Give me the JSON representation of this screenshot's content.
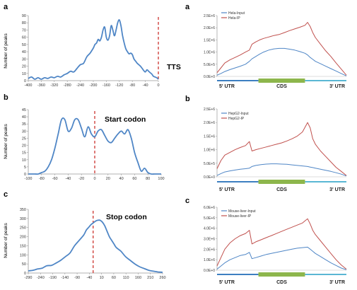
{
  "colors": {
    "blue": "#4f86c6",
    "red": "#c0504d",
    "dash": "#d0433e",
    "gene_green": "#8db64c",
    "gene_blue": "#3d7fc1",
    "gene_cyan": "#5ab7d4"
  },
  "chart_data": [
    {
      "id": "left-a",
      "panel": "a",
      "type": "line",
      "ylabel": "Number of peaks",
      "annotation": "TTS",
      "xlim": [
        -400,
        0
      ],
      "ylim": [
        0,
        90
      ],
      "yticks": [
        "0",
        "10",
        "20",
        "30",
        "40",
        "50",
        "60",
        "70",
        "80",
        "90"
      ],
      "xticks": [
        "-400",
        "-360",
        "-320",
        "-280",
        "-240",
        "-200",
        "-160",
        "-120",
        "-80",
        "-40",
        "0"
      ],
      "marker_x": 0,
      "series": [
        {
          "color": "#4f86c6",
          "x": [
            -400,
            -390,
            -380,
            -370,
            -360,
            -350,
            -340,
            -330,
            -320,
            -310,
            -300,
            -290,
            -280,
            -270,
            -260,
            -250,
            -240,
            -230,
            -220,
            -210,
            -200,
            -195,
            -190,
            -185,
            -180,
            -175,
            -170,
            -165,
            -160,
            -155,
            -150,
            -145,
            -140,
            -135,
            -130,
            -125,
            -120,
            -115,
            -110,
            -105,
            -100,
            -95,
            -90,
            -85,
            -80,
            -75,
            -70,
            -65,
            -60,
            -55,
            -50,
            -45,
            -40,
            -35,
            -30,
            -25,
            -20,
            -15,
            -10,
            -5,
            0
          ],
          "y": [
            3,
            5,
            2,
            4,
            2,
            4,
            3,
            5,
            4,
            6,
            5,
            8,
            10,
            13,
            12,
            17,
            22,
            24,
            33,
            38,
            45,
            50,
            52,
            57,
            55,
            60,
            70,
            74,
            60,
            56,
            62,
            76,
            70,
            62,
            70,
            80,
            84,
            76,
            62,
            52,
            44,
            40,
            37,
            38,
            36,
            30,
            27,
            24,
            22,
            20,
            17,
            14,
            12,
            15,
            13,
            11,
            9,
            6,
            5,
            4,
            2
          ]
        }
      ]
    },
    {
      "id": "left-b",
      "panel": "b",
      "type": "line",
      "ylabel": "Number of peaks",
      "annotation": "Start codon",
      "xlim": [
        -100,
        100
      ],
      "ylim": [
        0,
        45
      ],
      "yticks": [
        "0",
        "5",
        "10",
        "15",
        "20",
        "25",
        "30",
        "35",
        "40",
        "45"
      ],
      "xticks": [
        "-100",
        "-80",
        "-60",
        "-40",
        "-20",
        "0",
        "20",
        "40",
        "60",
        "80",
        "100"
      ],
      "marker_x": 0,
      "series": [
        {
          "color": "#4f86c6",
          "x": [
            -100,
            -95,
            -90,
            -85,
            -80,
            -75,
            -70,
            -65,
            -60,
            -55,
            -50,
            -45,
            -40,
            -35,
            -30,
            -25,
            -20,
            -15,
            -10,
            -5,
            0,
            5,
            10,
            15,
            20,
            25,
            30,
            35,
            40,
            45,
            50,
            55,
            60,
            65,
            70,
            75,
            80,
            85,
            90,
            95,
            100
          ],
          "y": [
            0,
            0,
            0,
            0,
            1,
            2,
            5,
            10,
            18,
            28,
            38,
            38,
            30,
            32,
            38,
            38,
            32,
            26,
            33,
            28,
            26,
            30,
            31,
            27,
            23,
            22,
            25,
            28,
            30,
            28,
            31,
            25,
            15,
            8,
            2,
            4,
            1,
            0,
            0,
            0,
            0
          ]
        }
      ]
    },
    {
      "id": "left-c",
      "panel": "c",
      "type": "line",
      "ylabel": "Number of peaks",
      "annotation": "Stop codon",
      "xlim": [
        -290,
        290
      ],
      "ylim": [
        0,
        350
      ],
      "yticks": [
        "0",
        "50",
        "100",
        "150",
        "200",
        "250",
        "300",
        "350"
      ],
      "xticks": [
        "-290",
        "-240",
        "-190",
        "-140",
        "-90",
        "-40",
        "10",
        "60",
        "110",
        "160",
        "210",
        "260"
      ],
      "marker_x": -10,
      "series": [
        {
          "color": "#4f86c6",
          "x": [
            -290,
            -270,
            -250,
            -230,
            -210,
            -190,
            -170,
            -150,
            -130,
            -110,
            -90,
            -70,
            -50,
            -40,
            -30,
            -20,
            -10,
            0,
            10,
            20,
            30,
            40,
            50,
            60,
            70,
            80,
            90,
            110,
            130,
            150,
            170,
            190,
            210,
            230,
            250,
            270,
            290
          ],
          "y": [
            12,
            15,
            22,
            27,
            40,
            42,
            55,
            70,
            90,
            110,
            150,
            180,
            210,
            235,
            250,
            265,
            275,
            285,
            290,
            290,
            280,
            260,
            230,
            200,
            180,
            160,
            140,
            120,
            90,
            70,
            50,
            35,
            25,
            15,
            10,
            6,
            4
          ]
        }
      ]
    },
    {
      "id": "right-a",
      "panel": "a",
      "type": "line",
      "ylim": [
        0,
        2500000
      ],
      "yticks": [
        "0.0E+0",
        "5.0E+5",
        "1.0E+6",
        "1.5E+6",
        "2.0E+6",
        "2.5E+6"
      ],
      "regions": [
        "5' UTR",
        "CDS",
        "3' UTR"
      ],
      "x": [
        0,
        0.03,
        0.06,
        0.1,
        0.14,
        0.18,
        0.22,
        0.25,
        0.27,
        0.3,
        0.33,
        0.36,
        0.4,
        0.44,
        0.48,
        0.52,
        0.56,
        0.6,
        0.64,
        0.68,
        0.7,
        0.72,
        0.74,
        0.76,
        0.8,
        0.84,
        0.88,
        0.92,
        0.96,
        1
      ],
      "series": [
        {
          "name": "Hela-Input",
          "color": "#4f86c6",
          "y": [
            0.05,
            0.12,
            0.2,
            0.28,
            0.35,
            0.42,
            0.5,
            0.62,
            0.72,
            0.82,
            0.92,
            1.0,
            1.08,
            1.13,
            1.15,
            1.15,
            1.12,
            1.08,
            1.02,
            0.95,
            0.88,
            0.78,
            0.7,
            0.62,
            0.52,
            0.42,
            0.32,
            0.22,
            0.12,
            0.02
          ]
        },
        {
          "name": "Hela-IP",
          "color": "#c0504d",
          "y": [
            0.15,
            0.35,
            0.55,
            0.68,
            0.78,
            0.88,
            1.0,
            1.08,
            1.32,
            1.42,
            1.5,
            1.56,
            1.62,
            1.68,
            1.72,
            1.8,
            1.88,
            1.95,
            2.02,
            2.1,
            2.22,
            2.05,
            1.8,
            1.6,
            1.32,
            1.05,
            0.82,
            0.55,
            0.3,
            0.05
          ]
        }
      ]
    },
    {
      "id": "right-b",
      "panel": "b",
      "type": "line",
      "ylim": [
        0,
        2500000
      ],
      "yticks": [
        "0.0E+0",
        "5.0E+5",
        "1.0E+6",
        "1.5E+6",
        "2.0E+6",
        "2.5E+6"
      ],
      "regions": [
        "5' UTR",
        "CDS",
        "3' UTR"
      ],
      "x": [
        0,
        0.03,
        0.06,
        0.1,
        0.14,
        0.18,
        0.22,
        0.25,
        0.27,
        0.3,
        0.34,
        0.38,
        0.42,
        0.46,
        0.5,
        0.54,
        0.58,
        0.62,
        0.66,
        0.7,
        0.72,
        0.74,
        0.76,
        0.8,
        0.84,
        0.88,
        0.92,
        0.96,
        1
      ],
      "series": [
        {
          "name": "HepG2-Input",
          "color": "#4f86c6",
          "y": [
            0.05,
            0.12,
            0.18,
            0.22,
            0.25,
            0.28,
            0.3,
            0.32,
            0.38,
            0.42,
            0.45,
            0.47,
            0.48,
            0.48,
            0.47,
            0.46,
            0.44,
            0.42,
            0.4,
            0.38,
            0.36,
            0.34,
            0.32,
            0.28,
            0.24,
            0.2,
            0.15,
            0.1,
            0.03
          ]
        },
        {
          "name": "HepG2-IP",
          "color": "#c0504d",
          "y": [
            0.3,
            0.6,
            0.8,
            0.9,
            1.0,
            1.08,
            1.15,
            1.3,
            0.95,
            1.0,
            1.05,
            1.1,
            1.15,
            1.2,
            1.25,
            1.32,
            1.4,
            1.5,
            1.65,
            2.0,
            1.8,
            1.4,
            1.2,
            0.95,
            0.75,
            0.55,
            0.35,
            0.2,
            0.05
          ]
        }
      ]
    },
    {
      "id": "right-c",
      "panel": "c",
      "type": "line",
      "ylim": [
        0,
        6000000
      ],
      "yticks": [
        "0.0E+0",
        "1.0E+6",
        "2.0E+6",
        "3.0E+6",
        "4.0E+6",
        "5.0E+6",
        "6.0E+6"
      ],
      "regions": [
        "5' UTR",
        "CDS",
        "3' UTR"
      ],
      "x": [
        0,
        0.03,
        0.06,
        0.1,
        0.14,
        0.18,
        0.22,
        0.25,
        0.27,
        0.3,
        0.34,
        0.38,
        0.42,
        0.46,
        0.5,
        0.54,
        0.58,
        0.62,
        0.66,
        0.7,
        0.72,
        0.74,
        0.76,
        0.8,
        0.84,
        0.88,
        0.92,
        0.96,
        1
      ],
      "series": [
        {
          "name": "Mouse-liver-Input",
          "color": "#4f86c6",
          "y": [
            0.1,
            0.4,
            0.7,
            1.0,
            1.2,
            1.4,
            1.5,
            1.7,
            1.1,
            1.2,
            1.35,
            1.5,
            1.6,
            1.7,
            1.8,
            1.9,
            2.0,
            2.1,
            2.15,
            2.2,
            2.0,
            1.8,
            1.6,
            1.3,
            1.0,
            0.7,
            0.45,
            0.2,
            0.05
          ]
        },
        {
          "name": "Mouse-liver-IP",
          "color": "#c0504d",
          "y": [
            0.4,
            1.2,
            2.0,
            2.6,
            3.0,
            3.3,
            3.5,
            3.8,
            2.5,
            2.7,
            2.9,
            3.1,
            3.3,
            3.5,
            3.7,
            3.9,
            4.1,
            4.3,
            4.5,
            4.9,
            4.4,
            3.8,
            3.4,
            2.8,
            2.2,
            1.6,
            1.0,
            0.5,
            0.1
          ]
        }
      ]
    }
  ]
}
